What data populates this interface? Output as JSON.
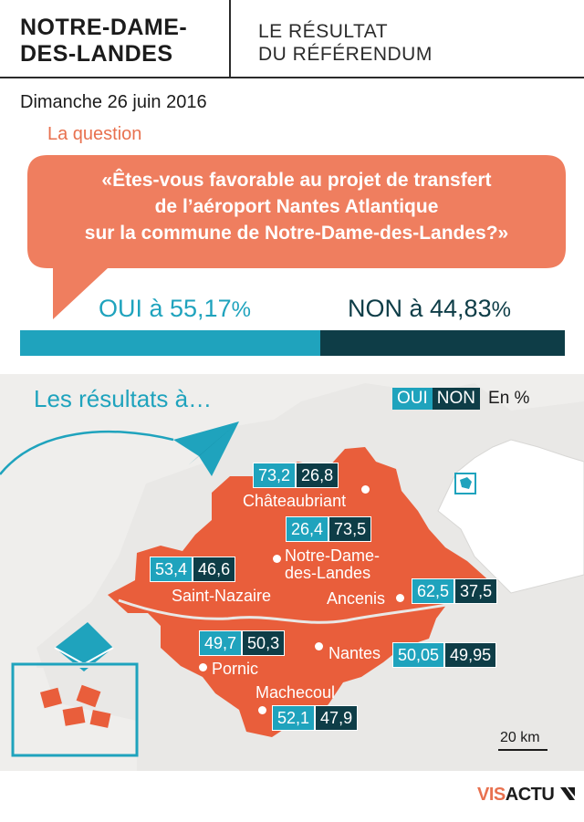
{
  "header": {
    "title_line1": "NOTRE-DAME-",
    "title_line2": "DES-LANDES",
    "subtitle_line1": "LE RÉSULTAT",
    "subtitle_line2": "DU RÉFÉRENDUM"
  },
  "date": "Dimanche 26 juin 2016",
  "question": {
    "label": "La question",
    "line1": "«Êtes-vous favorable au projet de transfert",
    "line2": "de l’aéroport Nantes Atlantique",
    "line3": "sur la commune de Notre-Dame-des-Landes?»"
  },
  "result": {
    "oui_text": "OUI à 55,17",
    "non_text": "NON à 44,83",
    "pct_sign": "%",
    "oui_share": 55.17,
    "non_share": 44.83
  },
  "map": {
    "title": "Les résultats à…",
    "legend_oui": "OUI",
    "legend_non": "NON",
    "legend_unit": "En %",
    "scale": "20 km",
    "cities": [
      {
        "name": "Châteaubriant",
        "oui": "73,2",
        "non": "26,8"
      },
      {
        "name": "Notre-Dame-",
        "name2": "des-Landes",
        "oui": "26,4",
        "non": "73,5"
      },
      {
        "name": "Saint-Nazaire",
        "oui": "53,4",
        "non": "46,6"
      },
      {
        "name": "Ancenis",
        "oui": "62,5",
        "non": "37,5"
      },
      {
        "name": "Pornic",
        "oui": "49,7",
        "non": "50,3"
      },
      {
        "name": "Nantes",
        "oui": "50,05",
        "non": "49,95"
      },
      {
        "name": "Machecoul",
        "oui": "52,1",
        "non": "47,9"
      }
    ]
  },
  "footer": {
    "brand_part1": "VIS",
    "brand_part2": "ACTU"
  },
  "colors": {
    "oui": "#1fa3bd",
    "non": "#0e3d47",
    "accent": "#e8714f",
    "map_bg": "#e9e8e6"
  }
}
